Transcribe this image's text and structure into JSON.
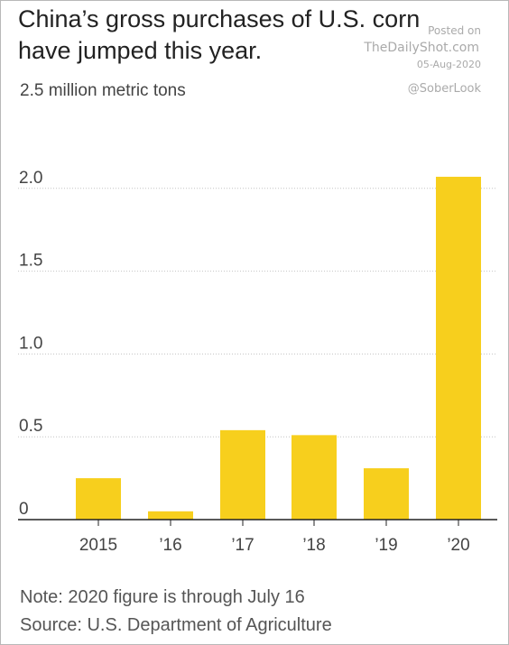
{
  "header": {
    "title": "China’s gross purchases of U.S. corn have jumped this year.",
    "unit_label": "2.5 million metric tons"
  },
  "watermark": {
    "posted": "Posted on",
    "site": "TheDailyShot.com",
    "date": "05-Aug-2020",
    "handle": "@SoberLook"
  },
  "footer": {
    "note": "Note: 2020 figure is through July 16",
    "source": "Source: U.S. Department of Agriculture"
  },
  "chart_data": {
    "type": "bar",
    "categories": [
      "2015",
      "’16",
      "’17",
      "’18",
      "’19",
      "’20"
    ],
    "values": [
      0.25,
      0.05,
      0.54,
      0.51,
      0.31,
      2.07
    ],
    "ylim": [
      0,
      2.5
    ],
    "yticks": [
      0,
      0.5,
      1.0,
      1.5,
      2.0
    ],
    "ytick_labels": [
      "0",
      "0.5",
      "1.0",
      "1.5",
      "2.0"
    ],
    "bar_color": "#f7cf1d",
    "gridlines": "dotted",
    "xlabel": "",
    "ylabel": ""
  }
}
